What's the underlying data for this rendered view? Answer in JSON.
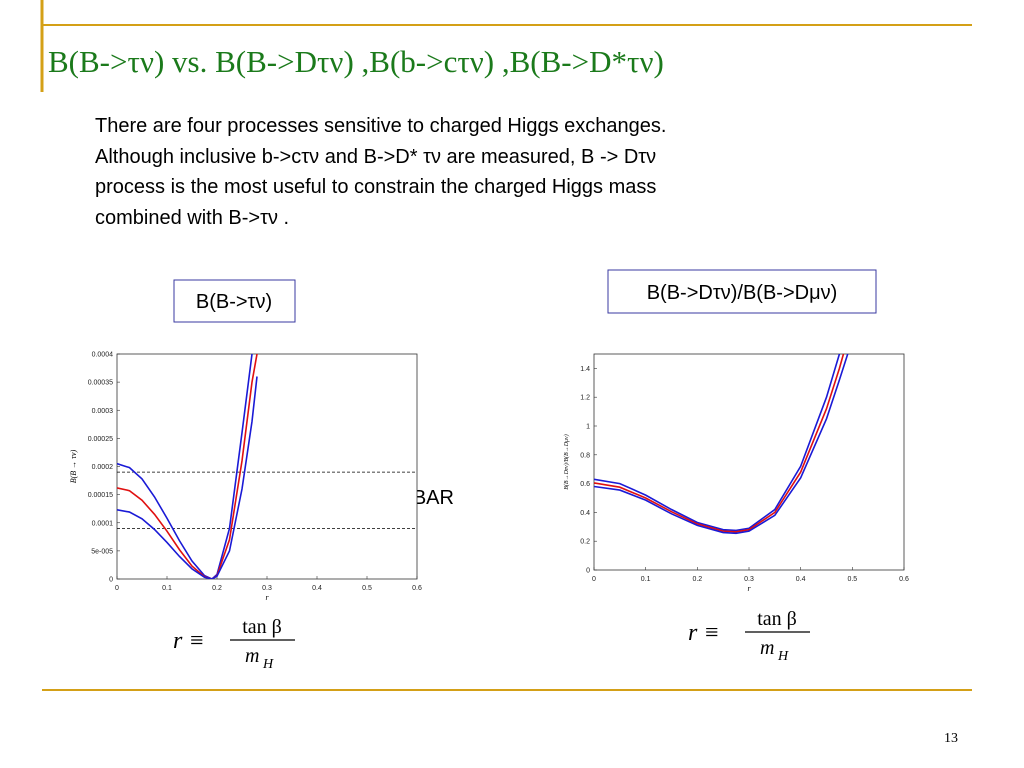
{
  "title": "B(B->τν) vs. B(B->Dτν) ,B(b->cτν) ,B(B->D*τν)",
  "body": [
    "There are four processes sensitive to charged Higgs exchanges.",
    "Although inclusive b->cτν and B->D* τν are measured, B -> Dτν",
    "process is the most useful to constrain the charged Higgs mass",
    "combined with B->τν ."
  ],
  "boxes": [
    "B(B->τν)",
    "B(B->Dτν)/B(B->Dμν)"
  ],
  "formulas": [
    {
      "lhs": "r ≡",
      "numerator": "tan β",
      "denominator": "m",
      "subscript": "H"
    },
    {
      "lhs": "r ≡",
      "numerator": "tan β",
      "denominator": "m",
      "subscript": "H"
    }
  ],
  "page_number": "13",
  "chart_data": [
    {
      "type": "line",
      "x_label": "r",
      "y_label": "B(B → τν)",
      "annotation": "Belle+BABAR",
      "xlim": [
        0,
        0.6
      ],
      "ylim": [
        0,
        0.0004
      ],
      "xticks": [
        0,
        0.1,
        0.2,
        0.3,
        0.4,
        0.5,
        0.6
      ],
      "yticks": [
        0,
        {
          "value": 5e-05,
          "label": "5e-005"
        },
        0.0001,
        0.00015,
        0.0002,
        0.00025,
        0.0003,
        0.00035,
        0.0004
      ],
      "hlines": [
        0.00019,
        9e-05
      ],
      "x": [
        0,
        0.025,
        0.05,
        0.075,
        0.1,
        0.125,
        0.15,
        0.175,
        0.19,
        0.2,
        0.225,
        0.25,
        0.27,
        0.28
      ],
      "series": [
        {
          "color": "#1a1ad6",
          "values": [
            0.000205,
            0.000198,
            0.000178,
            0.000146,
            0.000108,
            6.8e-05,
            3.2e-05,
            6e-06,
            0,
            8e-06,
            9e-05,
            0.00026,
            0.0004,
            null
          ]
        },
        {
          "color": "#e01010",
          "values": [
            0.000162,
            0.000157,
            0.00014,
            0.000115,
            8.5e-05,
            5.2e-05,
            2.3e-05,
            4e-06,
            0,
            6e-06,
            7e-05,
            0.00021,
            0.00035,
            0.0004
          ]
        },
        {
          "color": "#1a1ad6",
          "values": [
            0.000123,
            0.000119,
            0.000107,
            8.8e-05,
            6.5e-05,
            4e-05,
            1.8e-05,
            3e-06,
            0,
            5e-06,
            5e-05,
            0.00016,
            0.00028,
            0.00036
          ]
        }
      ]
    },
    {
      "type": "line",
      "x_label": "r",
      "y_label": "B(B→Dτν)/B(B→Dμν)",
      "xlim": [
        0,
        0.6
      ],
      "ylim": [
        0,
        1.5
      ],
      "xticks": [
        0,
        0.1,
        0.2,
        0.3,
        0.4,
        0.5,
        0.6
      ],
      "yticks": [
        0,
        0.2,
        0.4,
        0.6,
        0.8,
        1,
        1.2,
        1.4
      ],
      "x": [
        0,
        0.05,
        0.1,
        0.15,
        0.2,
        0.25,
        0.275,
        0.3,
        0.35,
        0.4,
        0.45,
        0.475,
        0.5
      ],
      "series": [
        {
          "color": "#1a1ad6",
          "values": [
            0.63,
            0.6,
            0.52,
            0.42,
            0.33,
            0.28,
            0.275,
            0.29,
            0.42,
            0.72,
            1.2,
            1.5,
            1.85
          ]
        },
        {
          "color": "#e01010",
          "values": [
            0.605,
            0.575,
            0.5,
            0.405,
            0.32,
            0.27,
            0.265,
            0.28,
            0.4,
            0.68,
            1.12,
            1.4,
            1.72
          ]
        },
        {
          "color": "#1a1ad6",
          "values": [
            0.58,
            0.555,
            0.485,
            0.39,
            0.31,
            0.26,
            0.255,
            0.27,
            0.38,
            0.64,
            1.05,
            1.32,
            1.6
          ]
        }
      ]
    }
  ]
}
